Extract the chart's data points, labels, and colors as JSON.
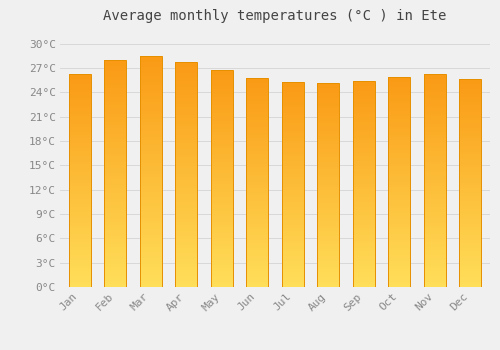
{
  "title": "Average monthly temperatures (°C ) in Ete",
  "months": [
    "Jan",
    "Feb",
    "Mar",
    "Apr",
    "May",
    "Jun",
    "Jul",
    "Aug",
    "Sep",
    "Oct",
    "Nov",
    "Dec"
  ],
  "values": [
    26.3,
    28.0,
    28.5,
    27.8,
    26.8,
    25.8,
    25.3,
    25.2,
    25.4,
    25.9,
    26.3,
    25.7
  ],
  "bar_color_main": "#FFA726",
  "bar_color_bottom": "#FFD54F",
  "bar_color_top": "#FB8C00",
  "bar_edge_color": "#E69000",
  "background_color": "#f0f0f0",
  "grid_color": "#d8d8d8",
  "yticks": [
    0,
    3,
    6,
    9,
    12,
    15,
    18,
    21,
    24,
    27,
    30
  ],
  "ylim": [
    0,
    31.5
  ],
  "title_fontsize": 10,
  "tick_fontsize": 8,
  "tick_color": "#888888",
  "title_color": "#444444"
}
